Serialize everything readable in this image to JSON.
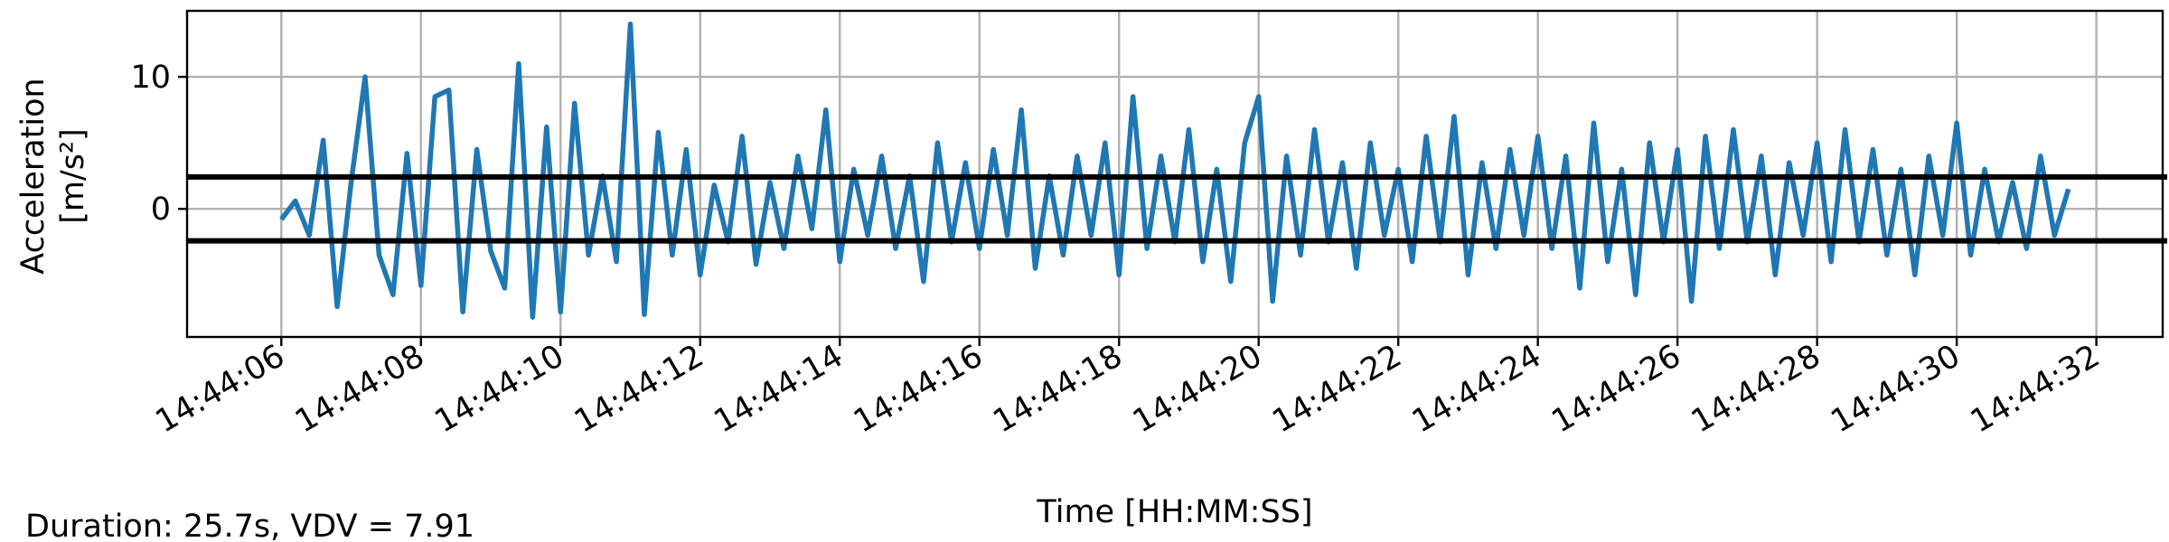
{
  "chart_data": {
    "type": "line",
    "ylabel": [
      "Acceleration",
      "[m/s²]"
    ],
    "xlabel": "Time [HH:MM:SS]",
    "annotation": "Duration: 25.7s, VDV = 7.91",
    "x": [
      6.0,
      6.2,
      6.4,
      6.6,
      6.8,
      7.0,
      7.2,
      7.4,
      7.6,
      7.8,
      8.0,
      8.2,
      8.4,
      8.6,
      8.8,
      9.0,
      9.2,
      9.4,
      9.6,
      9.8,
      10.0,
      10.2,
      10.4,
      10.6,
      10.8,
      11.0,
      11.2,
      11.4,
      11.6,
      11.8,
      12.0,
      12.2,
      12.4,
      12.6,
      12.8,
      13.0,
      13.2,
      13.4,
      13.6,
      13.8,
      14.0,
      14.2,
      14.4,
      14.6,
      14.8,
      15.0,
      15.2,
      15.4,
      15.6,
      15.8,
      16.0,
      16.2,
      16.4,
      16.6,
      16.8,
      17.0,
      17.2,
      17.4,
      17.6,
      17.8,
      18.0,
      18.2,
      18.4,
      18.6,
      18.8,
      19.0,
      19.2,
      19.4,
      19.6,
      19.8,
      20.0,
      20.2,
      20.4,
      20.6,
      20.8,
      21.0,
      21.2,
      21.4,
      21.6,
      21.8,
      22.0,
      22.2,
      22.4,
      22.6,
      22.8,
      23.0,
      23.2,
      23.4,
      23.6,
      23.8,
      24.0,
      24.2,
      24.4,
      24.6,
      24.8,
      25.0,
      25.2,
      25.4,
      25.6,
      25.8,
      26.0,
      26.2,
      26.4,
      26.6,
      26.8,
      27.0,
      27.2,
      27.4,
      27.6,
      27.8,
      28.0,
      28.2,
      28.4,
      28.6,
      28.8,
      29.0,
      29.2,
      29.4,
      29.6,
      29.8,
      30.0,
      30.2,
      30.4,
      30.6,
      30.8,
      31.0,
      31.2,
      31.4,
      31.6
    ],
    "series": [
      {
        "color": "#1f77b4",
        "values": [
          -0.8,
          0.6,
          -2.0,
          5.2,
          -7.4,
          2.0,
          10.0,
          -3.5,
          -6.5,
          4.2,
          -5.8,
          8.5,
          9.0,
          -7.8,
          4.5,
          -3.2,
          -6.0,
          11.0,
          -8.2,
          6.2,
          -7.8,
          8.0,
          -3.5,
          2.5,
          -4.0,
          14.0,
          -8.0,
          5.8,
          -3.5,
          4.5,
          -5.0,
          1.8,
          -2.5,
          5.5,
          -4.2,
          2.0,
          -3.0,
          4.0,
          -1.5,
          7.5,
          -4.0,
          3.0,
          -2.0,
          4.0,
          -3.0,
          2.5,
          -5.5,
          5.0,
          -2.5,
          3.5,
          -3.0,
          4.5,
          -2.0,
          7.5,
          -4.5,
          2.5,
          -3.5,
          4.0,
          -2.0,
          5.0,
          -5.0,
          8.5,
          -3.0,
          4.0,
          -2.5,
          6.0,
          -4.0,
          3.0,
          -5.5,
          5.0,
          8.5,
          -7.0,
          4.0,
          -3.5,
          6.0,
          -2.5,
          3.5,
          -4.5,
          5.0,
          -2.0,
          3.0,
          -4.0,
          5.5,
          -2.5,
          7.0,
          -5.0,
          3.5,
          -3.0,
          4.5,
          -2.0,
          5.5,
          -3.0,
          4.0,
          -6.0,
          6.5,
          -4.0,
          3.0,
          -6.5,
          5.0,
          -2.5,
          4.5,
          -7.0,
          5.5,
          -3.0,
          6.0,
          -2.5,
          4.0,
          -5.0,
          3.5,
          -2.0,
          5.0,
          -4.0,
          6.0,
          -2.5,
          4.5,
          -3.5,
          3.0,
          -5.0,
          4.0,
          -2.0,
          6.5,
          -3.5,
          3.0,
          -2.5,
          2.0,
          -3.0,
          4.0,
          -2.0,
          1.5
        ]
      }
    ],
    "reference_lines": [
      2.42,
      -2.42
    ],
    "reference_color": "#000000",
    "xlim": [
      4.65,
      32.95
    ],
    "ylim": [
      -9.7,
      15.0
    ],
    "xticks": [
      {
        "value": 6,
        "label": "14:44:06"
      },
      {
        "value": 8,
        "label": "14:44:08"
      },
      {
        "value": 10,
        "label": "14:44:10"
      },
      {
        "value": 12,
        "label": "14:44:12"
      },
      {
        "value": 14,
        "label": "14:44:14"
      },
      {
        "value": 16,
        "label": "14:44:16"
      },
      {
        "value": 18,
        "label": "14:44:18"
      },
      {
        "value": 20,
        "label": "14:44:20"
      },
      {
        "value": 22,
        "label": "14:44:22"
      },
      {
        "value": 24,
        "label": "14:44:24"
      },
      {
        "value": 26,
        "label": "14:44:26"
      },
      {
        "value": 28,
        "label": "14:44:28"
      },
      {
        "value": 30,
        "label": "14:44:30"
      },
      {
        "value": 32,
        "label": "14:44:32"
      }
    ],
    "yticks": [
      0,
      10
    ],
    "grid": true
  }
}
